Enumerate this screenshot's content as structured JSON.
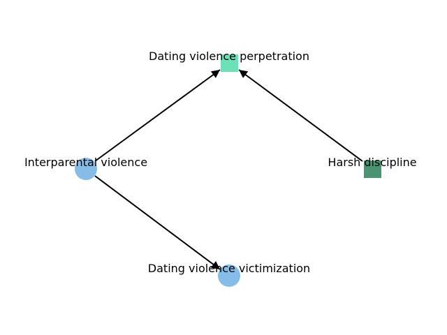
{
  "nodes": [
    {
      "id": "dvp",
      "label": "Dating violence perpetration",
      "shape": "square",
      "color": "#6ee0b8"
    },
    {
      "id": "ipv",
      "label": "Interparental violence",
      "shape": "circle",
      "color": "#85bde8"
    },
    {
      "id": "hd",
      "label": "Harsh discipline",
      "shape": "square",
      "color": "#4a9474"
    },
    {
      "id": "dvv",
      "label": "Dating violence victimization",
      "shape": "circle",
      "color": "#85bde8"
    }
  ],
  "edges": [
    {
      "from": "ipv",
      "to": "dvp"
    },
    {
      "from": "hd",
      "to": "dvp"
    },
    {
      "from": "ipv",
      "to": "dvv"
    }
  ]
}
